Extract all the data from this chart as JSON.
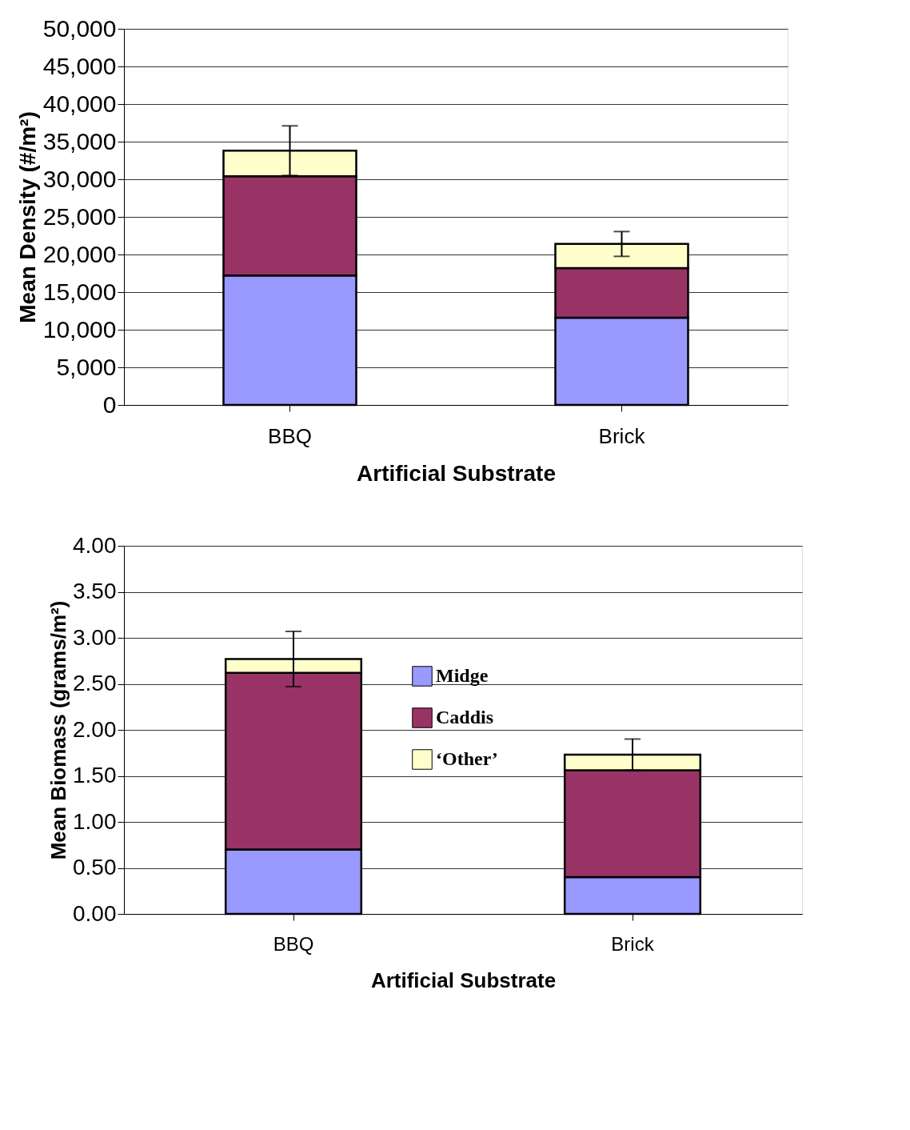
{
  "chart_data": [
    {
      "type": "bar",
      "stacked": true,
      "xlabel": "Artificial Substrate",
      "ylabel": "Mean Density (#/m²)",
      "categories": [
        "BBQ",
        "Brick"
      ],
      "series": [
        {
          "color": "#9999ff",
          "values": [
            17200,
            11600
          ]
        },
        {
          "color": "#993366",
          "values": [
            13200,
            6600
          ]
        },
        {
          "color": "#ffffcc",
          "values": [
            3400,
            3200
          ],
          "errors": [
            3300,
            1650
          ]
        }
      ],
      "ylim": [
        0,
        50000
      ],
      "yticks": [
        {
          "value": 0,
          "label": "0"
        },
        {
          "value": 5000,
          "label": "5,000"
        },
        {
          "value": 10000,
          "label": "10,000"
        },
        {
          "value": 15000,
          "label": "15,000"
        },
        {
          "value": 20000,
          "label": "20,000"
        },
        {
          "value": 25000,
          "label": "25,000"
        },
        {
          "value": 30000,
          "label": "30,000"
        },
        {
          "value": 35000,
          "label": "35,000"
        },
        {
          "value": 40000,
          "label": "40,000"
        },
        {
          "value": 45000,
          "label": "45,000"
        },
        {
          "value": 50000,
          "label": "50,000"
        }
      ],
      "grid": "y",
      "legend": false
    },
    {
      "type": "bar",
      "stacked": true,
      "xlabel": "Artificial Substrate",
      "ylabel": "Mean Biomass (grams/m²)",
      "categories": [
        "BBQ",
        "Brick"
      ],
      "series": [
        {
          "name": "Midge",
          "color": "#9999ff",
          "values": [
            0.7,
            0.4
          ]
        },
        {
          "name": "Caddis",
          "color": "#993366",
          "values": [
            1.92,
            1.16
          ]
        },
        {
          "name": "‘Other’",
          "color": "#ffffcc",
          "values": [
            0.15,
            0.17
          ],
          "errors": [
            0.3,
            0.17
          ]
        }
      ],
      "ylim": [
        0,
        4
      ],
      "yticks": [
        {
          "value": 0,
          "label": "0.00"
        },
        {
          "value": 0.5,
          "label": "0.50"
        },
        {
          "value": 1,
          "label": "1.00"
        },
        {
          "value": 1.5,
          "label": "1.50"
        },
        {
          "value": 2,
          "label": "2.00"
        },
        {
          "value": 2.5,
          "label": "2.50"
        },
        {
          "value": 3,
          "label": "3.00"
        },
        {
          "value": 3.5,
          "label": "3.50"
        },
        {
          "value": 4,
          "label": "4.00"
        }
      ],
      "grid": "y",
      "legend": "center"
    }
  ]
}
